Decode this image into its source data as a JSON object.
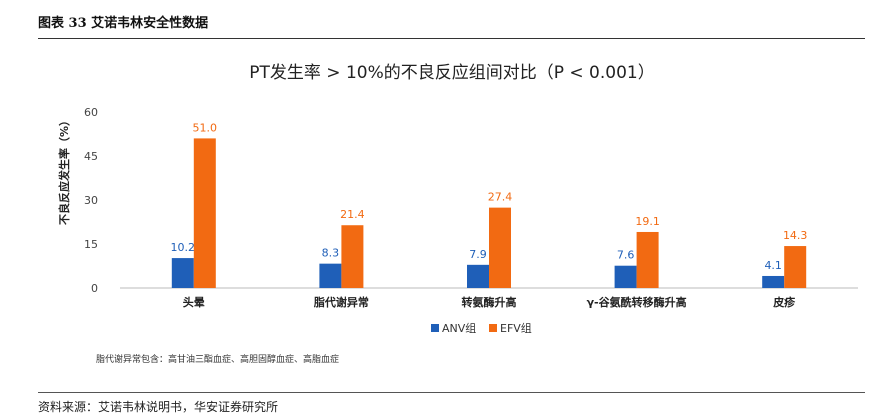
{
  "figure": {
    "title": "图表 33  艾诺韦林安全性数据",
    "source": "资料来源：艾诺韦林说明书，华安证券研究所",
    "note": "脂代谢异常包含：高甘油三酯血症、高胆固醇血症、高脂血症"
  },
  "chart_data": {
    "type": "bar",
    "title": "PT发生率 > 10%的不良反应组间对比（P < 0.001）",
    "ylabel": "不良反应发生率（%）",
    "xlabel": "",
    "ylim": [
      0,
      60
    ],
    "yticks": [
      0,
      15,
      30,
      45,
      60
    ],
    "grid": false,
    "legend_position": "bottom",
    "categories": [
      "头晕",
      "脂代谢异常",
      "转氨酶升高",
      "γ-谷氨酰转移酶升高",
      "皮疹"
    ],
    "series": [
      {
        "name": "ANV组",
        "color": "#1f5fb8",
        "values": [
          10.2,
          8.3,
          7.9,
          7.6,
          4.1
        ],
        "labels": [
          "10.2",
          "8.3",
          "7.9",
          "7.6",
          "4.1"
        ]
      },
      {
        "name": "EFV组",
        "color": "#f26a12",
        "values": [
          51.0,
          21.4,
          27.4,
          19.1,
          14.3
        ],
        "labels": [
          "51.0",
          "21.4",
          "27.4",
          "19.1",
          "14.3"
        ]
      }
    ]
  }
}
